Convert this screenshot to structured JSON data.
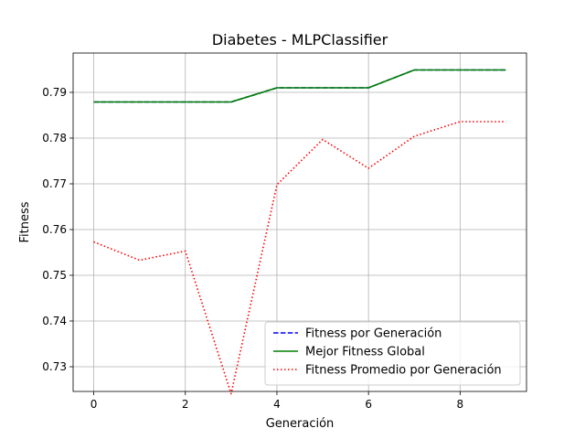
{
  "chart_data": {
    "type": "line",
    "title": "Diabetes - MLPClassifier",
    "xlabel": "Generación",
    "ylabel": "Fitness",
    "xlim": [
      -0.45,
      9.45
    ],
    "ylim": [
      0.7246,
      0.7986
    ],
    "xticks": [
      0,
      2,
      4,
      6,
      8
    ],
    "yticks": [
      0.73,
      0.74,
      0.75,
      0.76,
      0.77,
      0.78,
      0.79
    ],
    "ytick_labels": [
      "0.73",
      "0.74",
      "0.75",
      "0.76",
      "0.77",
      "0.78",
      "0.79"
    ],
    "grid": true,
    "legend_position": "lower right",
    "x": [
      0,
      1,
      2,
      3,
      4,
      5,
      6,
      7,
      8,
      9
    ],
    "series": [
      {
        "name": "Fitness por Generación",
        "color": "#0000ff",
        "style": "dashed",
        "values": [
          0.7879,
          0.7879,
          0.7879,
          0.7879,
          0.791,
          0.791,
          0.791,
          0.7949,
          0.7949,
          0.7949
        ]
      },
      {
        "name": "Mejor Fitness Global",
        "color": "#008000",
        "style": "solid",
        "values": [
          0.7879,
          0.7879,
          0.7879,
          0.7879,
          0.791,
          0.791,
          0.791,
          0.7949,
          0.7949,
          0.7949
        ]
      },
      {
        "name": "Fitness Promedio por Generación",
        "color": "#ff0000",
        "style": "dotted",
        "values": [
          0.7573,
          0.7533,
          0.7553,
          0.7241,
          0.7698,
          0.7797,
          0.7734,
          0.7804,
          0.7836,
          0.7836
        ]
      }
    ]
  }
}
